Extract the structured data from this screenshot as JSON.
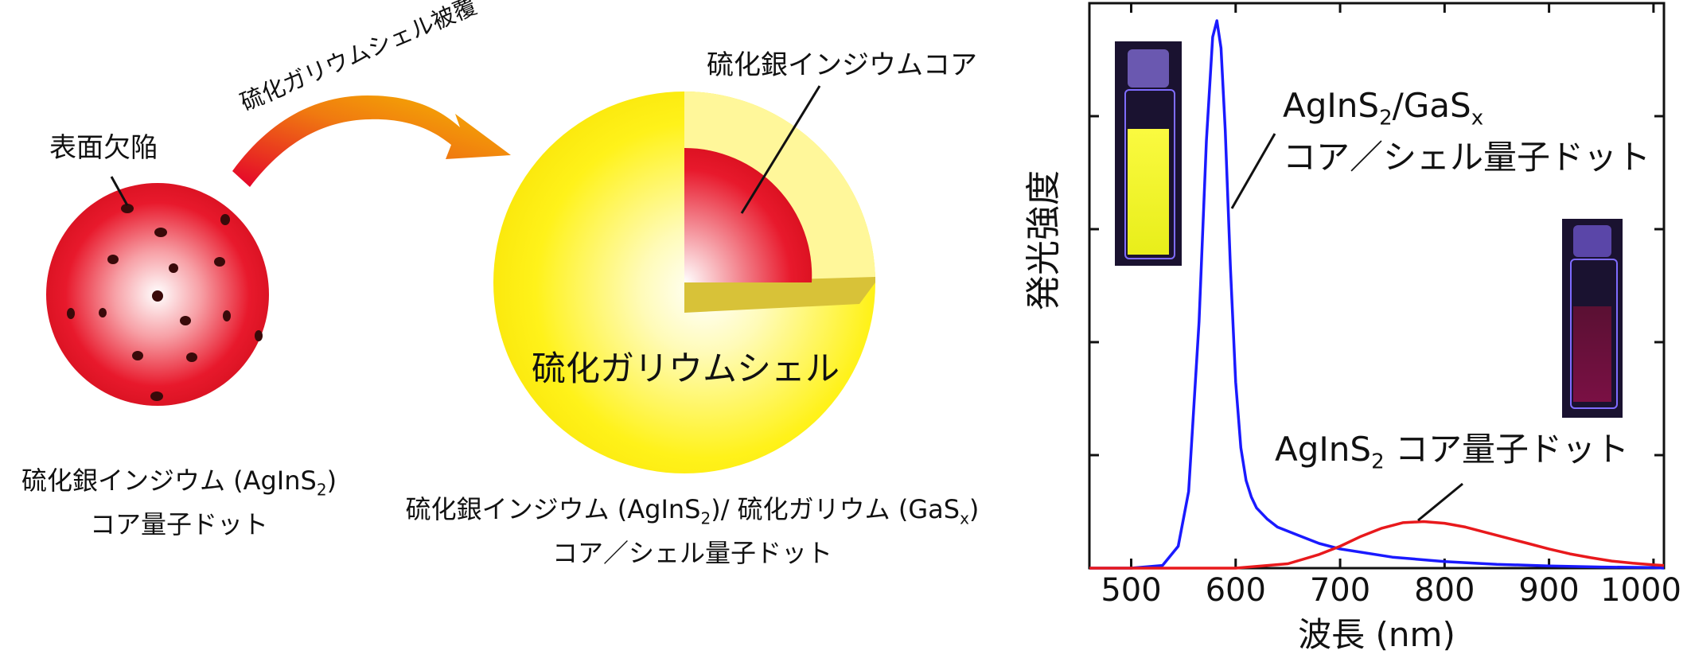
{
  "diagram": {
    "defect_label": "表面欠陥",
    "coating_label": "硫化ガリウムシェル被覆",
    "core_label": "硫化銀インジウムコア",
    "shell_label": "硫化ガリウムシェル",
    "left_caption": {
      "line1_prefix": "硫化銀インジウム (AgInS",
      "line1_sub": "2",
      "line1_suffix": ")",
      "line2": "コア量子ドット"
    },
    "right_caption": {
      "line1_a": "硫化銀インジウム (AgInS",
      "line1_sub1": "2",
      "line1_b": ")/ 硫化ガリウム (GaS",
      "line1_sub2": "x",
      "line1_c": ")",
      "line2": "コア／シェル量子ドット"
    },
    "colors": {
      "core_red": "#e8192c",
      "shell_yellow": "#fff21a",
      "arrow_start": "#e4002b",
      "arrow_end": "#f6b800"
    }
  },
  "chart_data": {
    "type": "line",
    "xlabel": "波長 (nm)",
    "ylabel": "発光強度",
    "xlim": [
      460,
      1010
    ],
    "ylim": [
      0,
      1.0
    ],
    "x_ticks": [
      500,
      600,
      700,
      800,
      900,
      1000
    ],
    "x_tick_labels": [
      "500",
      "600",
      "700",
      "800",
      "900",
      "1000"
    ],
    "grid": false,
    "series": [
      {
        "color": "#1a1aff",
        "annotation": {
          "line1_prefix": "AgInS",
          "line1_sub": "2",
          "line1_mid": "/GaS",
          "line1_sub2": "x",
          "line2": "コア／シェル量子ドット"
        },
        "x": [
          460,
          500,
          530,
          545,
          555,
          565,
          572,
          578,
          582,
          586,
          590,
          595,
          600,
          605,
          610,
          615,
          620,
          630,
          640,
          660,
          680,
          700,
          750,
          800,
          850,
          900,
          950,
          1000,
          1010
        ],
        "y": [
          0.0,
          0.0,
          0.005,
          0.04,
          0.14,
          0.45,
          0.78,
          0.97,
          1.0,
          0.95,
          0.8,
          0.55,
          0.34,
          0.22,
          0.16,
          0.13,
          0.11,
          0.09,
          0.075,
          0.06,
          0.045,
          0.035,
          0.02,
          0.012,
          0.007,
          0.004,
          0.002,
          0.001,
          0.0
        ]
      },
      {
        "color": "#e8191c",
        "annotation": {
          "line1_prefix": "AgInS",
          "line1_sub": "2",
          "line1_suffix": " コア量子ドット"
        },
        "x": [
          460,
          600,
          650,
          680,
          700,
          720,
          740,
          760,
          780,
          800,
          820,
          840,
          860,
          880,
          900,
          920,
          940,
          960,
          980,
          1000,
          1010
        ],
        "y": [
          0.0,
          0.0,
          0.008,
          0.025,
          0.04,
          0.058,
          0.073,
          0.083,
          0.085,
          0.082,
          0.075,
          0.065,
          0.055,
          0.045,
          0.035,
          0.026,
          0.019,
          0.013,
          0.009,
          0.006,
          0.005
        ]
      }
    ]
  }
}
